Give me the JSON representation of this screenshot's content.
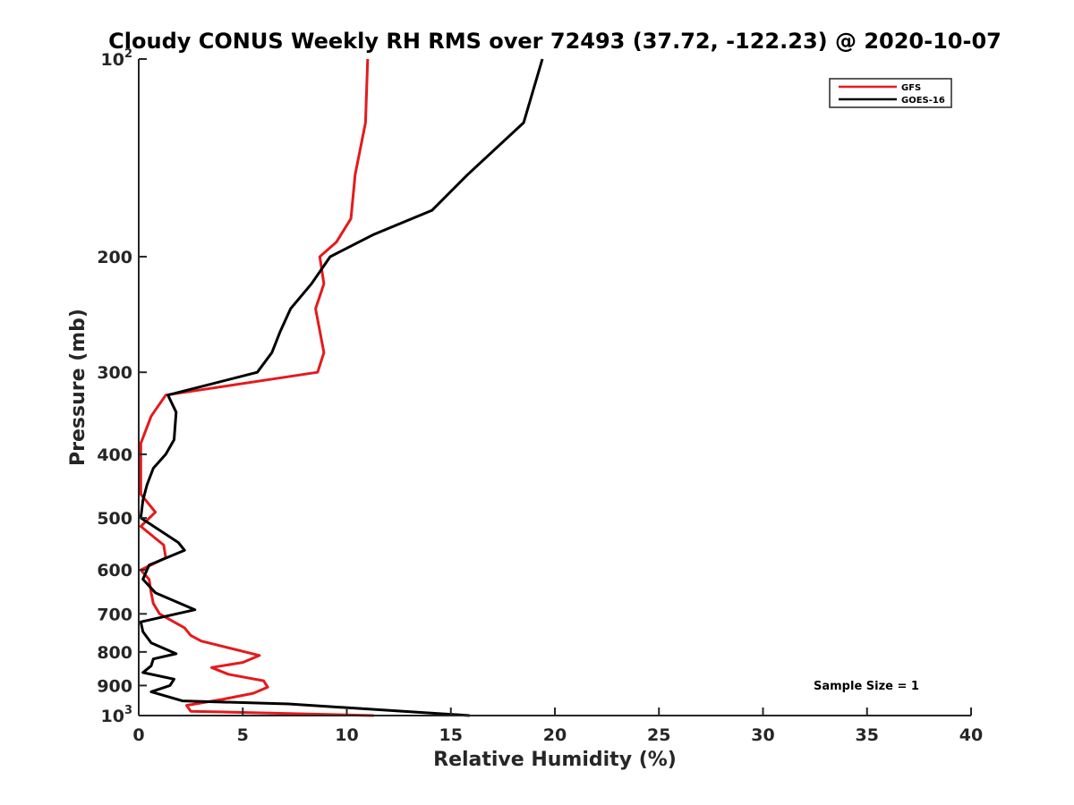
{
  "chart_data": {
    "type": "line",
    "title": "Cloudy CONUS Weekly RH RMS over 72493 (37.72, -122.23) @ 2020-10-07",
    "xlabel": "Relative Humidity (%)",
    "ylabel": "Pressure (mb)",
    "xlim": [
      0,
      40
    ],
    "ylim": [
      100,
      1000
    ],
    "y_scale": "log",
    "y_reversed": true,
    "grid": false,
    "legend_position": "top-right",
    "x_ticks": [
      0,
      5,
      10,
      15,
      20,
      25,
      30,
      35,
      40
    ],
    "y_ticks": [
      {
        "value": 100,
        "label": "10",
        "sup": "2"
      },
      {
        "value": 200,
        "label": "200",
        "sup": ""
      },
      {
        "value": 300,
        "label": "300",
        "sup": ""
      },
      {
        "value": 400,
        "label": "400",
        "sup": ""
      },
      {
        "value": 500,
        "label": "500",
        "sup": ""
      },
      {
        "value": 600,
        "label": "600",
        "sup": ""
      },
      {
        "value": 700,
        "label": "700",
        "sup": ""
      },
      {
        "value": 800,
        "label": "800",
        "sup": ""
      },
      {
        "value": 900,
        "label": "900",
        "sup": ""
      },
      {
        "value": 1000,
        "label": "10",
        "sup": "3"
      }
    ],
    "annotation": "Sample Size = 1",
    "series": [
      {
        "name": "GFS",
        "color": "#e41a1c",
        "points": [
          [
            11.0,
            100
          ],
          [
            10.9,
            125
          ],
          [
            10.4,
            150
          ],
          [
            10.2,
            175
          ],
          [
            9.5,
            190
          ],
          [
            8.7,
            200
          ],
          [
            8.9,
            220
          ],
          [
            8.5,
            240
          ],
          [
            8.9,
            280
          ],
          [
            8.6,
            300
          ],
          [
            1.3,
            325
          ],
          [
            0.6,
            350
          ],
          [
            0.1,
            385
          ],
          [
            0.1,
            420
          ],
          [
            0.1,
            460
          ],
          [
            0.8,
            490
          ],
          [
            0.1,
            515
          ],
          [
            1.2,
            550
          ],
          [
            1.3,
            575
          ],
          [
            0.1,
            600
          ],
          [
            0.5,
            620
          ],
          [
            0.6,
            650
          ],
          [
            0.7,
            675
          ],
          [
            1.0,
            700
          ],
          [
            2.2,
            735
          ],
          [
            2.5,
            755
          ],
          [
            3.0,
            770
          ],
          [
            5.8,
            810
          ],
          [
            5.0,
            830
          ],
          [
            3.5,
            845
          ],
          [
            4.3,
            865
          ],
          [
            6.0,
            885
          ],
          [
            6.2,
            905
          ],
          [
            5.5,
            925
          ],
          [
            4.0,
            945
          ],
          [
            2.3,
            965
          ],
          [
            2.5,
            985
          ],
          [
            11.3,
            1000
          ]
        ]
      },
      {
        "name": "GOES-16",
        "color": "#000000",
        "points": [
          [
            19.4,
            100
          ],
          [
            18.5,
            125
          ],
          [
            15.8,
            150
          ],
          [
            14.1,
            170
          ],
          [
            11.3,
            185
          ],
          [
            9.2,
            200
          ],
          [
            8.3,
            220
          ],
          [
            7.3,
            240
          ],
          [
            6.8,
            260
          ],
          [
            6.4,
            280
          ],
          [
            5.7,
            300
          ],
          [
            1.4,
            325
          ],
          [
            1.8,
            345
          ],
          [
            1.7,
            380
          ],
          [
            1.3,
            400
          ],
          [
            0.7,
            420
          ],
          [
            0.4,
            445
          ],
          [
            0.2,
            470
          ],
          [
            0.1,
            500
          ],
          [
            1.9,
            545
          ],
          [
            2.2,
            560
          ],
          [
            0.5,
            590
          ],
          [
            0.2,
            620
          ],
          [
            0.8,
            650
          ],
          [
            2.7,
            690
          ],
          [
            0.1,
            720
          ],
          [
            0.2,
            745
          ],
          [
            0.4,
            760
          ],
          [
            0.6,
            775
          ],
          [
            1.8,
            805
          ],
          [
            0.7,
            820
          ],
          [
            0.6,
            840
          ],
          [
            0.2,
            860
          ],
          [
            1.7,
            880
          ],
          [
            1.5,
            900
          ],
          [
            0.6,
            920
          ],
          [
            2.1,
            950
          ],
          [
            7.2,
            960
          ],
          [
            15.9,
            1000
          ]
        ]
      }
    ]
  }
}
